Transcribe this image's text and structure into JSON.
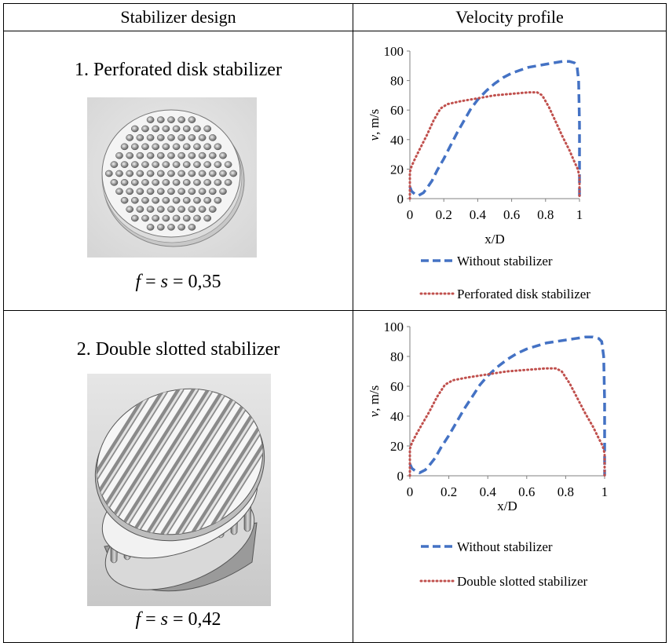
{
  "table": {
    "headers": [
      "Stabilizer design",
      "Velocity profile"
    ],
    "rows": [
      {
        "design_title": "1. Perforated disk stabilizer",
        "illustration_icon": "perforated-disk-icon",
        "param_f": "f",
        "param_eq1": " = ",
        "param_s": "s",
        "param_eq2": " = 0,35"
      },
      {
        "design_title": "2. Double slotted stabilizer",
        "illustration_icon": "double-slotted-stabilizer-icon",
        "param_f": "f",
        "param_eq1": " = ",
        "param_s": "s",
        "param_eq2": " = 0,42"
      }
    ]
  },
  "chart_data": [
    {
      "type": "line",
      "title": "",
      "xlabel": "x/D",
      "ylabel_italic": "v",
      "ylabel_rest": ", m/s",
      "xlim": [
        0,
        1
      ],
      "ylim": [
        0,
        100
      ],
      "xticks": [
        "0",
        "0.2",
        "0.4",
        "0.6",
        "0.8",
        "1"
      ],
      "yticks": [
        "0",
        "20",
        "40",
        "60",
        "80",
        "100"
      ],
      "legend_position": "bottom",
      "series": [
        {
          "name": "Without stabilizer",
          "color": "#4472C4",
          "style": "dashed",
          "x": [
            0.0,
            0.01,
            0.03,
            0.05,
            0.08,
            0.1,
            0.13,
            0.16,
            0.2,
            0.24,
            0.28,
            0.32,
            0.36,
            0.4,
            0.45,
            0.5,
            0.55,
            0.6,
            0.65,
            0.7,
            0.75,
            0.8,
            0.85,
            0.9,
            0.94,
            0.97,
            0.985,
            0.995,
            1.0,
            1.0
          ],
          "y": [
            8,
            5,
            3,
            2,
            4,
            7,
            12,
            19,
            27,
            36,
            45,
            53,
            61,
            67,
            73,
            78,
            82,
            85,
            87,
            89,
            90,
            91,
            92,
            93,
            93,
            92,
            90,
            80,
            50,
            0
          ]
        },
        {
          "name": "Perforated disk stabilizer",
          "color": "#C0504D",
          "style": "dotted",
          "x": [
            0.0,
            0.0,
            0.01,
            0.03,
            0.06,
            0.1,
            0.14,
            0.18,
            0.22,
            0.3,
            0.4,
            0.5,
            0.6,
            0.7,
            0.75,
            0.78,
            0.82,
            0.86,
            0.9,
            0.94,
            0.97,
            0.99,
            1.0,
            1.0
          ],
          "y": [
            0,
            18,
            22,
            27,
            34,
            43,
            53,
            61,
            64,
            66,
            68,
            70,
            71,
            72,
            72,
            70,
            62,
            52,
            42,
            33,
            25,
            20,
            15,
            0
          ]
        }
      ]
    },
    {
      "type": "line",
      "title": "",
      "xlabel": "x/D",
      "ylabel_italic": "v",
      "ylabel_rest": ", m/s",
      "xlim": [
        0,
        1
      ],
      "ylim": [
        0,
        100
      ],
      "xticks": [
        "0",
        "0.2",
        "0.4",
        "0.6",
        "0.8",
        "1"
      ],
      "yticks": [
        "0",
        "20",
        "40",
        "60",
        "80",
        "100"
      ],
      "legend_position": "bottom",
      "series": [
        {
          "name": "Without stabilizer",
          "color": "#4472C4",
          "style": "dashed",
          "x": [
            0.0,
            0.01,
            0.03,
            0.05,
            0.08,
            0.1,
            0.13,
            0.16,
            0.2,
            0.24,
            0.28,
            0.32,
            0.36,
            0.4,
            0.45,
            0.5,
            0.55,
            0.6,
            0.65,
            0.7,
            0.75,
            0.8,
            0.85,
            0.9,
            0.94,
            0.97,
            0.985,
            0.995,
            1.0,
            1.0
          ],
          "y": [
            8,
            5,
            3,
            2,
            4,
            7,
            12,
            19,
            27,
            36,
            45,
            53,
            61,
            67,
            73,
            78,
            82,
            85,
            87,
            89,
            90,
            91,
            92,
            93,
            93,
            92,
            90,
            80,
            50,
            0
          ]
        },
        {
          "name": "Double slotted stabilizer",
          "color": "#C0504D",
          "style": "dotted",
          "x": [
            0.0,
            0.0,
            0.01,
            0.03,
            0.06,
            0.1,
            0.14,
            0.18,
            0.22,
            0.3,
            0.4,
            0.5,
            0.6,
            0.7,
            0.75,
            0.78,
            0.82,
            0.86,
            0.9,
            0.94,
            0.97,
            0.99,
            1.0,
            1.0
          ],
          "y": [
            0,
            18,
            22,
            27,
            34,
            43,
            53,
            61,
            64,
            66,
            68,
            70,
            71,
            72,
            72,
            70,
            62,
            52,
            42,
            33,
            25,
            20,
            15,
            0
          ]
        }
      ]
    }
  ]
}
